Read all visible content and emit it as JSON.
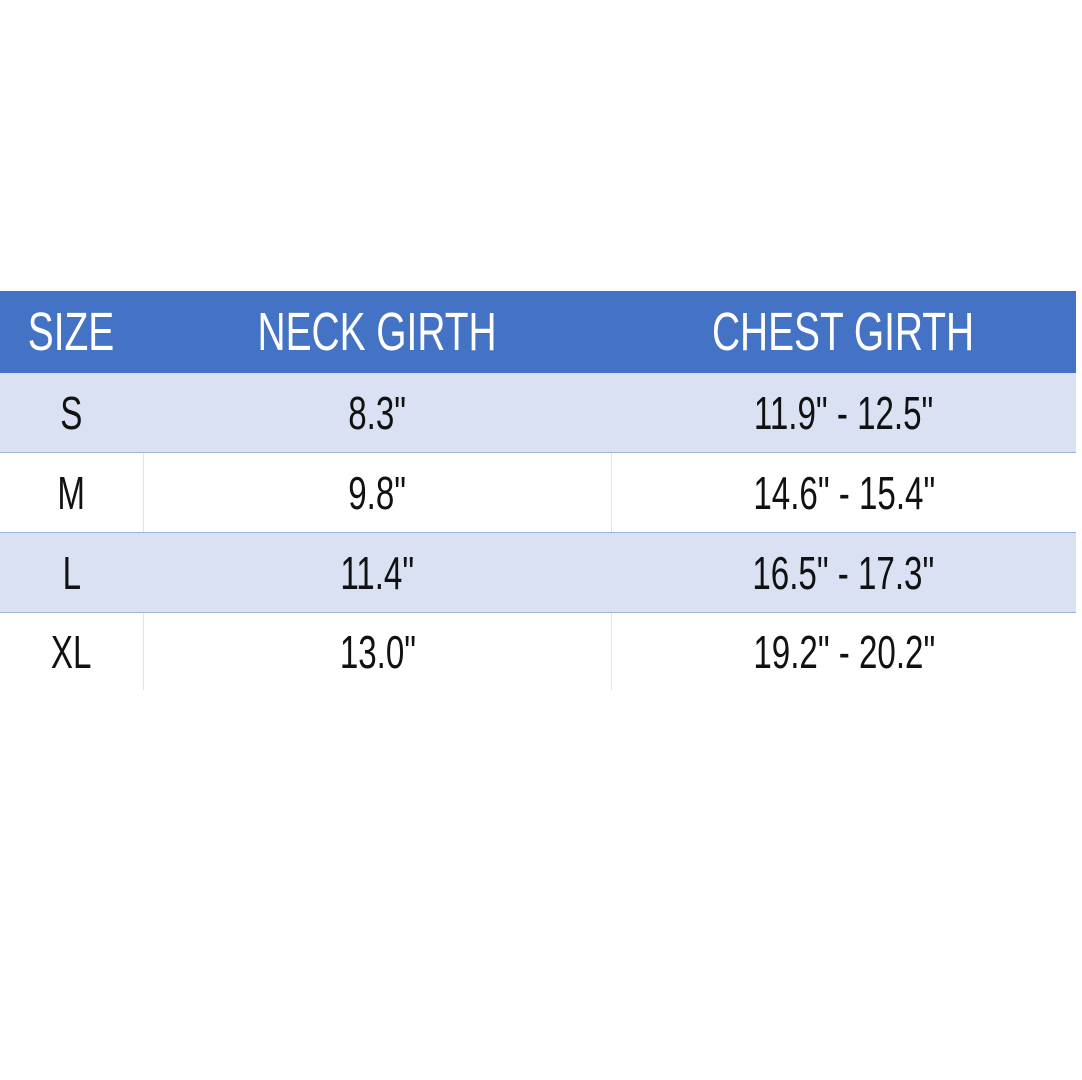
{
  "colors": {
    "header_bg": "#4472C4",
    "header_text": "#FFFFFF",
    "band_bg": "#D9E1F2",
    "row_border": "#9BB3DD"
  },
  "table": {
    "headers": [
      "SIZE",
      "NECK GIRTH",
      "CHEST GIRTH"
    ],
    "rows": [
      [
        "S",
        "8.3\"",
        "11.9\" - 12.5\""
      ],
      [
        "M",
        "9.8\"",
        "14.6\" - 15.4\""
      ],
      [
        "L",
        "11.4\"",
        "16.5\" - 17.3\""
      ],
      [
        "XL",
        "13.0\"",
        "19.2\" - 20.2\""
      ]
    ]
  }
}
